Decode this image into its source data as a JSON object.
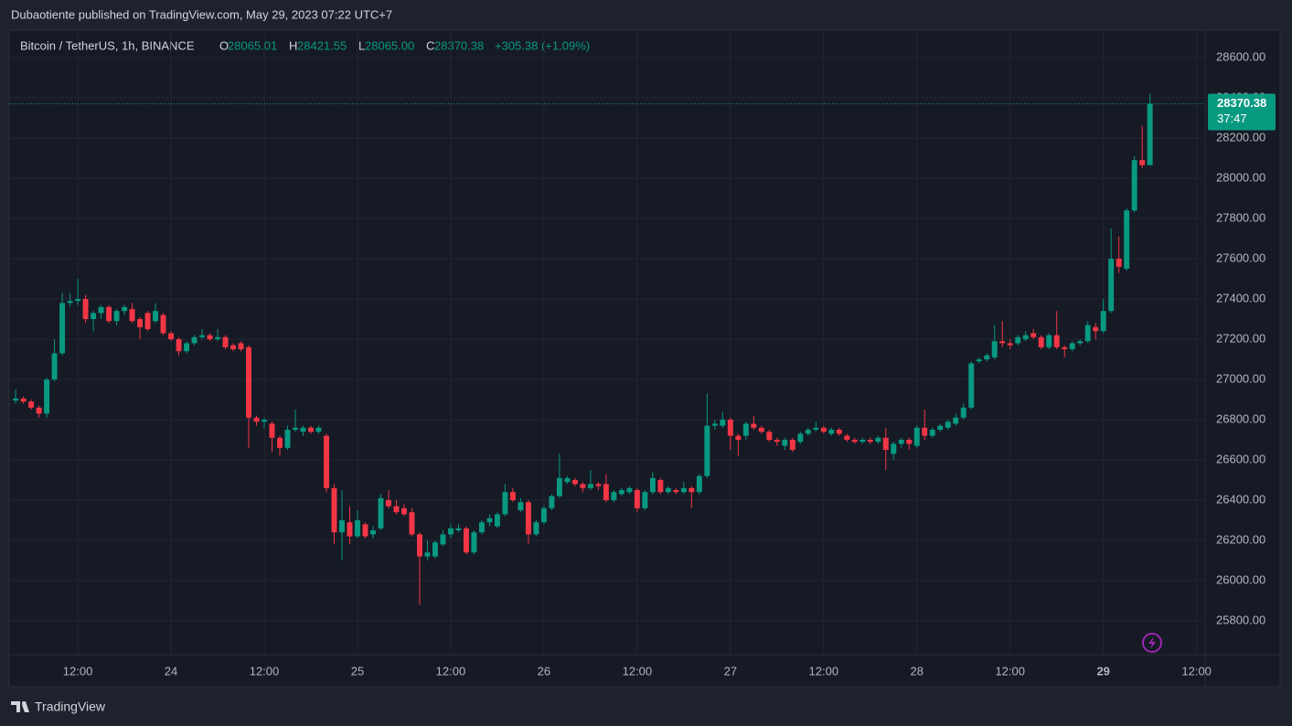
{
  "chart_data": {
    "type": "candlestick",
    "title": "Dubaotiente published on TradingView.com, May 29, 2023 07:22 UTC+7",
    "legend": {
      "symbol": "Bitcoin / TetherUS, 1h, BINANCE",
      "fields": [
        {
          "key": "O",
          "value": "28065.01"
        },
        {
          "key": "H",
          "value": "28421.55"
        },
        {
          "key": "L",
          "value": "28065.00"
        },
        {
          "key": "C",
          "value": "28370.38"
        }
      ],
      "change": "+305.38 (+1.09%)"
    },
    "up_color": "#089981",
    "down_color": "#f23645",
    "grid": true,
    "last_price": 28370.38,
    "countdown": "37:47",
    "footer": "TradingView",
    "xlim": [
      "23 03:24",
      "29 13:06"
    ],
    "xticks": [
      {
        "value": "23 12:00",
        "label": "12:00"
      },
      {
        "value": "24 00:00",
        "label": "24"
      },
      {
        "value": "24 12:00",
        "label": "12:00"
      },
      {
        "value": "25 00:00",
        "label": "25"
      },
      {
        "value": "25 12:00",
        "label": "12:00"
      },
      {
        "value": "26 00:00",
        "label": "26"
      },
      {
        "value": "26 12:00",
        "label": "12:00"
      },
      {
        "value": "27 00:00",
        "label": "27"
      },
      {
        "value": "27 12:00",
        "label": "12:00"
      },
      {
        "value": "28 00:00",
        "label": "28"
      },
      {
        "value": "28 12:00",
        "label": "12:00"
      },
      {
        "value": "29 00:00",
        "label": "29"
      },
      {
        "value": "29 12:00",
        "label": "12:00"
      }
    ],
    "ylim": [
      25632,
      28736
    ],
    "yticks": [
      {
        "value": 25800,
        "label": "25800.00"
      },
      {
        "value": 26000,
        "label": "26000.00"
      },
      {
        "value": 26200,
        "label": "26200.00"
      },
      {
        "value": 26400,
        "label": "26400.00"
      },
      {
        "value": 26600,
        "label": "26600.00"
      },
      {
        "value": 26800,
        "label": "26800.00"
      },
      {
        "value": 27000,
        "label": "27000.00"
      },
      {
        "value": 27200,
        "label": "27200.00"
      },
      {
        "value": 27400,
        "label": "27400.00"
      },
      {
        "value": 27600,
        "label": "27600.00"
      },
      {
        "value": 27800,
        "label": "27800.00"
      },
      {
        "value": 28000,
        "label": "28000.00"
      },
      {
        "value": 28200,
        "label": "28200.00"
      },
      {
        "value": 28400,
        "label": "28400.00"
      },
      {
        "value": 28600,
        "label": "28600.00"
      }
    ],
    "x": [
      "23 04:00",
      "23 05:00",
      "23 06:00",
      "23 07:00",
      "23 08:00",
      "23 09:00",
      "23 10:00",
      "23 11:00",
      "23 12:00",
      "23 13:00",
      "23 14:00",
      "23 15:00",
      "23 16:00",
      "23 17:00",
      "23 18:00",
      "23 19:00",
      "23 20:00",
      "23 21:00",
      "23 22:00",
      "23 23:00",
      "24 00:00",
      "24 01:00",
      "24 02:00",
      "24 03:00",
      "24 04:00",
      "24 05:00",
      "24 06:00",
      "24 07:00",
      "24 08:00",
      "24 09:00",
      "24 10:00",
      "24 11:00",
      "24 12:00",
      "24 13:00",
      "24 14:00",
      "24 15:00",
      "24 16:00",
      "24 17:00",
      "24 18:00",
      "24 19:00",
      "24 20:00",
      "24 21:00",
      "24 22:00",
      "24 23:00",
      "25 00:00",
      "25 01:00",
      "25 02:00",
      "25 03:00",
      "25 04:00",
      "25 05:00",
      "25 06:00",
      "25 07:00",
      "25 08:00",
      "25 09:00",
      "25 10:00",
      "25 11:00",
      "25 12:00",
      "25 13:00",
      "25 14:00",
      "25 15:00",
      "25 16:00",
      "25 17:00",
      "25 18:00",
      "25 19:00",
      "25 20:00",
      "25 21:00",
      "25 22:00",
      "25 23:00",
      "26 00:00",
      "26 01:00",
      "26 02:00",
      "26 03:00",
      "26 04:00",
      "26 05:00",
      "26 06:00",
      "26 07:00",
      "26 08:00",
      "26 09:00",
      "26 10:00",
      "26 11:00",
      "26 12:00",
      "26 13:00",
      "26 14:00",
      "26 15:00",
      "26 16:00",
      "26 17:00",
      "26 18:00",
      "26 19:00",
      "26 20:00",
      "26 21:00",
      "26 22:00",
      "26 23:00",
      "27 00:00",
      "27 01:00",
      "27 02:00",
      "27 03:00",
      "27 04:00",
      "27 05:00",
      "27 06:00",
      "27 07:00",
      "27 08:00",
      "27 09:00",
      "27 10:00",
      "27 11:00",
      "27 12:00",
      "27 13:00",
      "27 14:00",
      "27 15:00",
      "27 16:00",
      "27 17:00",
      "27 18:00",
      "27 19:00",
      "27 20:00",
      "27 21:00",
      "27 22:00",
      "27 23:00",
      "28 00:00",
      "28 01:00",
      "28 02:00",
      "28 03:00",
      "28 04:00",
      "28 05:00",
      "28 06:00",
      "28 07:00",
      "28 08:00",
      "28 09:00",
      "28 10:00",
      "28 11:00",
      "28 12:00",
      "28 13:00",
      "28 14:00",
      "28 15:00",
      "28 16:00",
      "28 17:00",
      "28 18:00",
      "28 19:00",
      "28 20:00",
      "28 21:00",
      "28 22:00",
      "28 23:00",
      "29 00:00",
      "29 01:00",
      "29 02:00",
      "29 03:00",
      "29 04:00",
      "29 05:00",
      "29 06:00"
    ],
    "ohlc": [
      [
        26895,
        26950,
        26880,
        26905
      ],
      [
        26905,
        26915,
        26880,
        26890
      ],
      [
        26890,
        26900,
        26850,
        26860
      ],
      [
        26860,
        26870,
        26810,
        26830
      ],
      [
        26830,
        27010,
        26810,
        27000
      ],
      [
        27000,
        27200,
        26990,
        27130
      ],
      [
        27130,
        27430,
        27120,
        27380
      ],
      [
        27380,
        27430,
        27360,
        27390
      ],
      [
        27390,
        27500,
        27370,
        27400
      ],
      [
        27400,
        27420,
        27280,
        27300
      ],
      [
        27300,
        27340,
        27240,
        27330
      ],
      [
        27330,
        27370,
        27300,
        27360
      ],
      [
        27360,
        27370,
        27280,
        27290
      ],
      [
        27290,
        27350,
        27270,
        27340
      ],
      [
        27340,
        27370,
        27320,
        27360
      ],
      [
        27350,
        27380,
        27280,
        27290
      ],
      [
        27300,
        27310,
        27200,
        27260
      ],
      [
        27330,
        27340,
        27240,
        27250
      ],
      [
        27290,
        27380,
        27280,
        27340
      ],
      [
        27320,
        27330,
        27220,
        27230
      ],
      [
        27230,
        27240,
        27190,
        27200
      ],
      [
        27200,
        27210,
        27120,
        27140
      ],
      [
        27140,
        27190,
        27130,
        27180
      ],
      [
        27180,
        27220,
        27170,
        27210
      ],
      [
        27210,
        27250,
        27200,
        27220
      ],
      [
        27220,
        27230,
        27190,
        27200
      ],
      [
        27200,
        27250,
        27190,
        27210
      ],
      [
        27210,
        27220,
        27150,
        27160
      ],
      [
        27170,
        27180,
        27140,
        27150
      ],
      [
        27180,
        27190,
        27140,
        27150
      ],
      [
        27160,
        27170,
        26660,
        26810
      ],
      [
        26810,
        26820,
        26770,
        26790
      ],
      [
        26790,
        26810,
        26760,
        26800
      ],
      [
        26780,
        26790,
        26640,
        26710
      ],
      [
        26710,
        26720,
        26620,
        26660
      ],
      [
        26660,
        26770,
        26650,
        26750
      ],
      [
        26750,
        26850,
        26740,
        26760
      ],
      [
        26740,
        26770,
        26720,
        26760
      ],
      [
        26760,
        26770,
        26730,
        26740
      ],
      [
        26740,
        26770,
        26730,
        26760
      ],
      [
        26720,
        26730,
        26440,
        26460
      ],
      [
        26460,
        26480,
        26180,
        26240
      ],
      [
        26240,
        26450,
        26100,
        26300
      ],
      [
        26290,
        26370,
        26180,
        26220
      ],
      [
        26220,
        26350,
        26210,
        26300
      ],
      [
        26280,
        26290,
        26210,
        26220
      ],
      [
        26230,
        26270,
        26210,
        26250
      ],
      [
        26260,
        26430,
        26250,
        26410
      ],
      [
        26400,
        26450,
        26360,
        26370
      ],
      [
        26370,
        26400,
        26330,
        26340
      ],
      [
        26360,
        26380,
        26320,
        26330
      ],
      [
        26340,
        26360,
        26220,
        26230
      ],
      [
        26230,
        26240,
        25880,
        26120
      ],
      [
        26120,
        26200,
        26100,
        26140
      ],
      [
        26120,
        26200,
        26110,
        26190
      ],
      [
        26180,
        26250,
        26170,
        26230
      ],
      [
        26230,
        26280,
        26210,
        26260
      ],
      [
        26250,
        26280,
        26240,
        26260
      ],
      [
        26260,
        26270,
        26130,
        26140
      ],
      [
        26140,
        26250,
        26130,
        26240
      ],
      [
        26240,
        26300,
        26230,
        26290
      ],
      [
        26290,
        26330,
        26270,
        26310
      ],
      [
        26270,
        26340,
        26260,
        26330
      ],
      [
        26330,
        26480,
        26320,
        26440
      ],
      [
        26440,
        26460,
        26390,
        26400
      ],
      [
        26350,
        26410,
        26340,
        26390
      ],
      [
        26390,
        26400,
        26180,
        26230
      ],
      [
        26230,
        26300,
        26220,
        26290
      ],
      [
        26290,
        26370,
        26280,
        26360
      ],
      [
        26360,
        26430,
        26350,
        26420
      ],
      [
        26420,
        26630,
        26410,
        26510
      ],
      [
        26490,
        26520,
        26480,
        26510
      ],
      [
        26500,
        26510,
        26470,
        26480
      ],
      [
        26480,
        26490,
        26440,
        26460
      ],
      [
        26460,
        26550,
        26450,
        26480
      ],
      [
        26480,
        26490,
        26450,
        26470
      ],
      [
        26480,
        26530,
        26390,
        26400
      ],
      [
        26400,
        26450,
        26390,
        26440
      ],
      [
        26430,
        26460,
        26420,
        26450
      ],
      [
        26440,
        26470,
        26430,
        26460
      ],
      [
        26450,
        26460,
        26340,
        26360
      ],
      [
        26360,
        26450,
        26350,
        26440
      ],
      [
        26440,
        26540,
        26430,
        26510
      ],
      [
        26500,
        26510,
        26430,
        26440
      ],
      [
        26440,
        26470,
        26430,
        26460
      ],
      [
        26450,
        26460,
        26430,
        26440
      ],
      [
        26440,
        26490,
        26430,
        26460
      ],
      [
        26460,
        26470,
        26360,
        26440
      ],
      [
        26440,
        26530,
        26430,
        26520
      ],
      [
        26520,
        26930,
        26510,
        26770
      ],
      [
        26770,
        26800,
        26750,
        26780
      ],
      [
        26770,
        26840,
        26760,
        26800
      ],
      [
        26800,
        26810,
        26650,
        26720
      ],
      [
        26720,
        26730,
        26620,
        26700
      ],
      [
        26720,
        26790,
        26700,
        26780
      ],
      [
        26780,
        26820,
        26750,
        26760
      ],
      [
        26760,
        26770,
        26730,
        26740
      ],
      [
        26740,
        26750,
        26690,
        26700
      ],
      [
        26700,
        26710,
        26670,
        26690
      ],
      [
        26670,
        26710,
        26650,
        26700
      ],
      [
        26700,
        26710,
        26640,
        26650
      ],
      [
        26690,
        26740,
        26680,
        26730
      ],
      [
        26730,
        26760,
        26720,
        26750
      ],
      [
        26750,
        26790,
        26740,
        26760
      ],
      [
        26760,
        26770,
        26730,
        26740
      ],
      [
        26730,
        26760,
        26720,
        26750
      ],
      [
        26750,
        26760,
        26720,
        26730
      ],
      [
        26720,
        26730,
        26690,
        26700
      ],
      [
        26700,
        26710,
        26680,
        26690
      ],
      [
        26690,
        26710,
        26680,
        26700
      ],
      [
        26700,
        26710,
        26680,
        26690
      ],
      [
        26690,
        26720,
        26680,
        26710
      ],
      [
        26710,
        26760,
        26550,
        26650
      ],
      [
        26630,
        26690,
        26600,
        26680
      ],
      [
        26680,
        26710,
        26660,
        26700
      ],
      [
        26700,
        26710,
        26650,
        26680
      ],
      [
        26670,
        26770,
        26660,
        26760
      ],
      [
        26760,
        26850,
        26700,
        26720
      ],
      [
        26720,
        26760,
        26710,
        26750
      ],
      [
        26750,
        26780,
        26740,
        26770
      ],
      [
        26760,
        26800,
        26750,
        26790
      ],
      [
        26780,
        26830,
        26770,
        26810
      ],
      [
        26810,
        26880,
        26800,
        26860
      ],
      [
        26860,
        27090,
        26850,
        27080
      ],
      [
        27090,
        27110,
        27080,
        27100
      ],
      [
        27100,
        27130,
        27090,
        27120
      ],
      [
        27110,
        27270,
        27100,
        27190
      ],
      [
        27190,
        27290,
        27160,
        27180
      ],
      [
        27180,
        27200,
        27150,
        27170
      ],
      [
        27180,
        27220,
        27170,
        27210
      ],
      [
        27200,
        27240,
        27190,
        27220
      ],
      [
        27230,
        27250,
        27200,
        27210
      ],
      [
        27210,
        27220,
        27150,
        27160
      ],
      [
        27160,
        27230,
        27150,
        27220
      ],
      [
        27220,
        27340,
        27150,
        27160
      ],
      [
        27160,
        27170,
        27110,
        27150
      ],
      [
        27150,
        27190,
        27140,
        27180
      ],
      [
        27180,
        27200,
        27170,
        27190
      ],
      [
        27190,
        27290,
        27180,
        27270
      ],
      [
        27260,
        27280,
        27200,
        27240
      ],
      [
        27240,
        27400,
        27230,
        27340
      ],
      [
        27340,
        27750,
        27330,
        27600
      ],
      [
        27600,
        27710,
        27530,
        27560
      ],
      [
        27550,
        27850,
        27540,
        27840
      ],
      [
        27840,
        28110,
        27830,
        28090
      ],
      [
        28090,
        28260,
        28050,
        28065
      ],
      [
        28065.01,
        28421.55,
        28065,
        28370.38
      ]
    ]
  }
}
